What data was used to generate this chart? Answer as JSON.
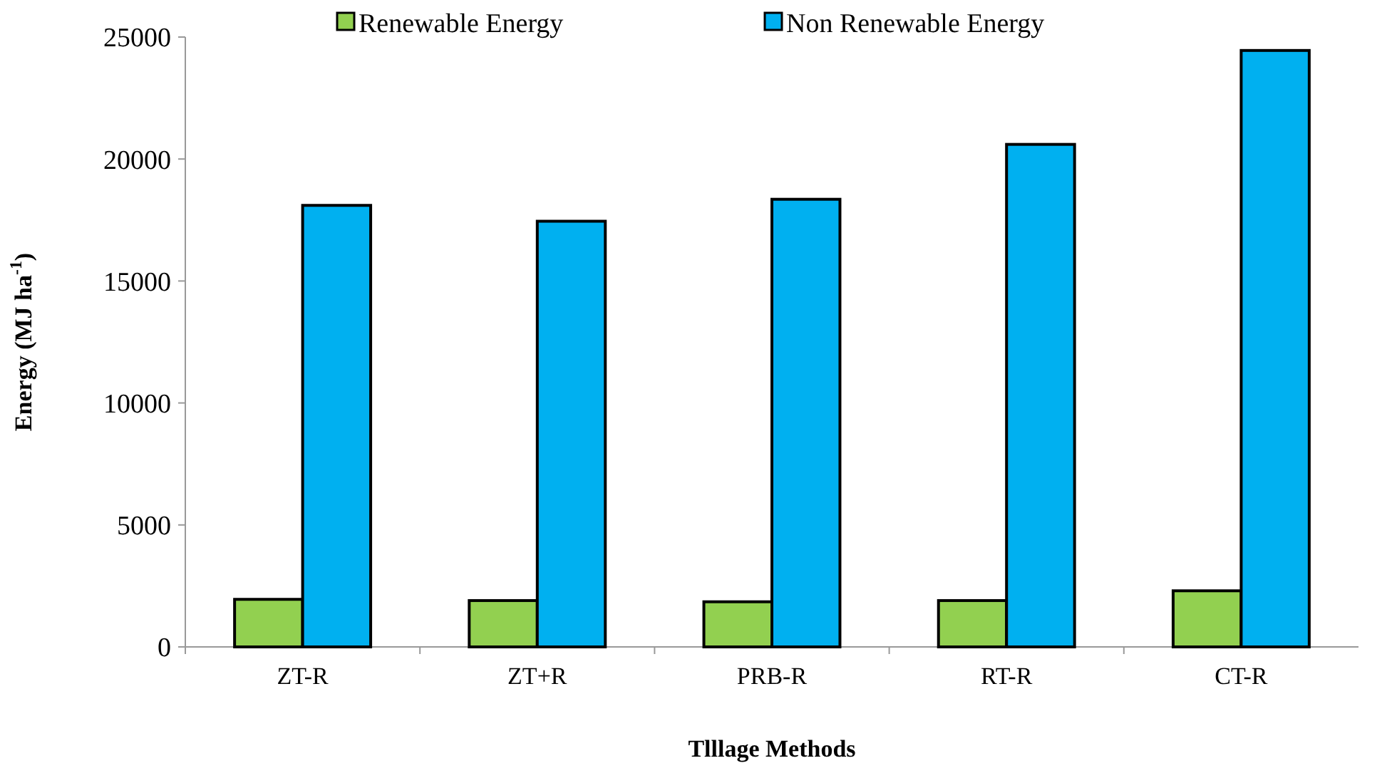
{
  "chart_data": {
    "type": "bar",
    "xlabel": "Tlllage Methods",
    "ylabel": "Energy (MJ ha$^{-1}$)",
    "categories": [
      "ZT-R",
      "ZT+R",
      "PRB-R",
      "RT-R",
      "CT-R"
    ],
    "series": [
      {
        "name": "Renewable Energy",
        "color": "#92d050",
        "values": [
          1950,
          1900,
          1850,
          1900,
          2300
        ]
      },
      {
        "name": "Non Renewable Energy",
        "color": "#00b0f0",
        "values": [
          18100,
          17450,
          18350,
          20600,
          24450
        ]
      }
    ],
    "ylim": [
      0,
      25000
    ],
    "yticks": [
      0,
      5000,
      10000,
      15000,
      20000,
      25000
    ],
    "grid": false,
    "legend": "top"
  }
}
